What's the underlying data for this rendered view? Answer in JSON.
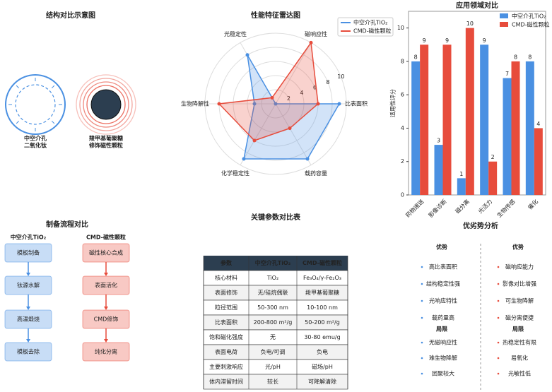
{
  "chart_data": [
    {
      "type": "radar",
      "title": "性能特征雷达图",
      "categories": [
        "比表面积",
        "磁响应性",
        "光稳定性",
        "生物降解性",
        "化学稳定性",
        "载药容量"
      ],
      "series": [
        {
          "name": "中空介孔TiO₂",
          "color": "#4a90e2",
          "values": [
            9,
            0,
            8,
            3,
            9,
            9
          ]
        },
        {
          "name": "CMD-磁性颗粒",
          "color": "#e74c3c",
          "values": [
            6,
            10,
            1,
            8,
            6,
            4
          ]
        }
      ],
      "rlim": [
        0,
        10
      ],
      "rticks": [
        2,
        4,
        6,
        8,
        10
      ],
      "legend": "upper right"
    },
    {
      "type": "bar",
      "title": "应用领域对比",
      "ylabel": "适用性评分",
      "categories": [
        "药物递送",
        "影像诊断",
        "磁分离",
        "光活力",
        "生物传感",
        "催化"
      ],
      "series": [
        {
          "name": "中空介孔TiO₂",
          "color": "#4a90e2",
          "values": [
            8,
            3,
            1,
            9,
            7,
            8
          ]
        },
        {
          "name": "CMD-磁性颗粒",
          "color": "#e74c3c",
          "values": [
            9,
            9,
            10,
            2,
            8,
            4
          ]
        }
      ],
      "ylim": [
        0,
        11
      ],
      "yticks": [
        0,
        2,
        4,
        6,
        8,
        10
      ],
      "legend": "upper right"
    }
  ],
  "structure": {
    "title": "结构对比示意图",
    "labels": [
      [
        "中空介孔",
        "二氧化钛"
      ],
      [
        "羧甲基葡聚糖",
        "修饰磁性颗粒"
      ]
    ]
  },
  "flow": {
    "title": "制备流程对比",
    "columns": [
      {
        "title": "中空介孔TiO₂",
        "color": "#4a90e2",
        "steps": [
          "模板制备",
          "钛源水解",
          "高温煅烧",
          "模板去除"
        ]
      },
      {
        "title": "CMD-磁性颗粒",
        "color": "#e74c3c",
        "steps": [
          "磁性核心合成",
          "表面活化",
          "CMD修饰",
          "纯化分离"
        ]
      }
    ]
  },
  "table": {
    "title": "关键参数对比表",
    "header": [
      "参数",
      "中空介孔TiO₂",
      "CMD-磁性颗粒"
    ],
    "rows": [
      [
        "核心材料",
        "TiO₂",
        "Fe₃O₄/γ-Fe₂O₃"
      ],
      [
        "表面修饰",
        "无/硅烷偶联",
        "羧甲基葡聚糖"
      ],
      [
        "粒径范围",
        "50-300 nm",
        "10-100 nm"
      ],
      [
        "比表面积",
        "200-800 m²/g",
        "50-200 m²/g"
      ],
      [
        "饱和磁化强度",
        "无",
        "30-80 emu/g"
      ],
      [
        "表面电荷",
        "负电/可调",
        "负电"
      ],
      [
        "主要刺激响应",
        "光/pH",
        "磁场/pH"
      ],
      [
        "体内滞留时间",
        "较长",
        "可降解清除"
      ]
    ]
  },
  "analysis": {
    "title": "优劣势分析",
    "columns": [
      {
        "color": "#4a90e2",
        "sections": [
          {
            "heading": "优势",
            "items": [
              "高比表面积",
              "结构稳定性强",
              "光响应特性",
              "载药量高"
            ]
          },
          {
            "heading": "局限",
            "items": [
              "无磁响应性",
              "难生物降解",
              "团聚较大"
            ]
          }
        ]
      },
      {
        "color": "#e74c3c",
        "sections": [
          {
            "heading": "优势",
            "items": [
              "磁响应能力",
              "影像对比增强",
              "可生物降解",
              "磁分离便捷"
            ]
          },
          {
            "heading": "局限",
            "items": [
              "热稳定性有限",
              "易氧化",
              "光敏性低"
            ]
          }
        ]
      }
    ]
  }
}
